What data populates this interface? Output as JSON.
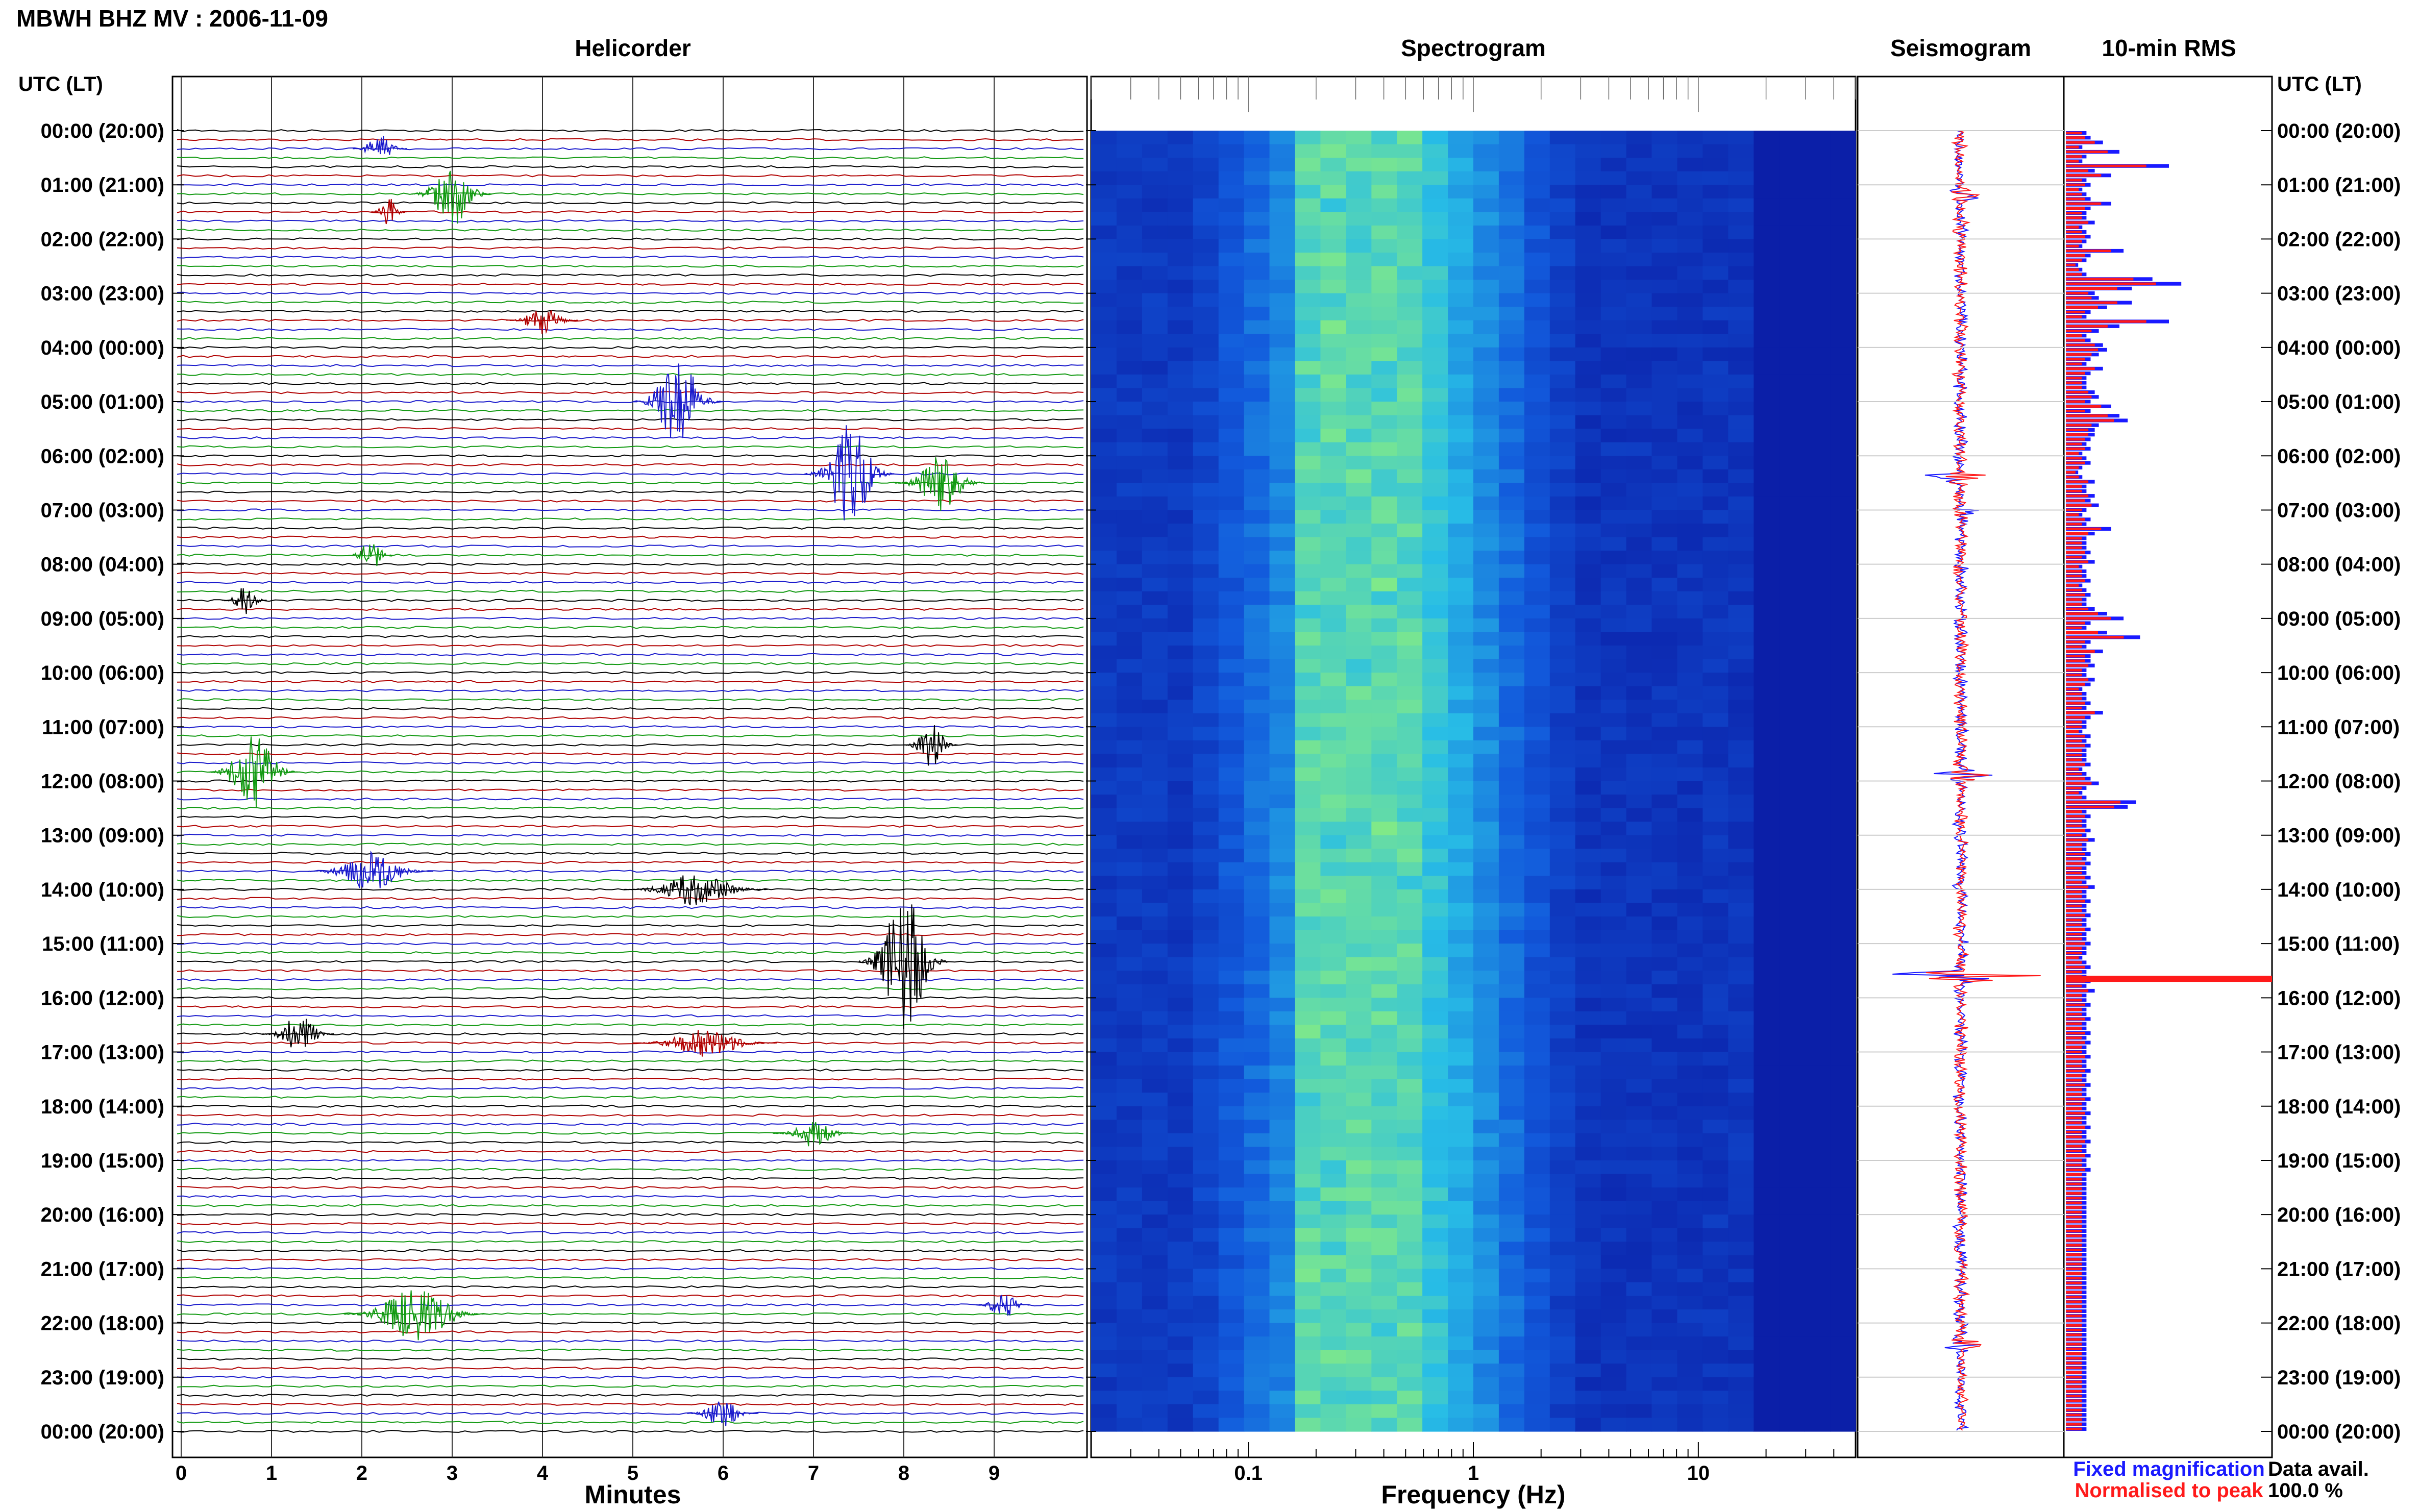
{
  "header": {
    "title": "MBWH BHZ MV : 2006-11-09",
    "utc_left": "UTC (LT)",
    "utc_right": "UTC (LT)"
  },
  "panels": {
    "helicorder": "Helicorder",
    "spectrogram": "Spectrogram",
    "seismogram": "Seismogram",
    "rms": "10-min RMS"
  },
  "axes": {
    "helicorder_xlabel": "Minutes",
    "spectrogram_xlabel": "Frequency (Hz)"
  },
  "legend": {
    "fixed": "Fixed magnification",
    "normalised": "Normalised to peak",
    "fixed_color": "#1a1aff",
    "normalised_color": "#ff1a1a"
  },
  "data_avail": {
    "label": "Data avail.",
    "value": "100.0 %"
  },
  "colors": {
    "trace_cycle": [
      "#000000",
      "#b00000",
      "#1a1acc",
      "#119911"
    ],
    "spectro_low": "#0b1fa8",
    "spectro_high": "#8ef07a"
  },
  "chart_data": [
    {
      "type": "line",
      "panel": "helicorder",
      "x_ticks": [
        "0",
        "1",
        "2",
        "3",
        "4",
        "5",
        "6",
        "7",
        "8",
        "9"
      ],
      "xlim": [
        0,
        10
      ],
      "xlabel": "Minutes",
      "y_ticks": [
        "00:00 (20:00)",
        "01:00 (21:00)",
        "02:00 (22:00)",
        "03:00 (23:00)",
        "04:00 (00:00)",
        "05:00 (01:00)",
        "06:00 (02:00)",
        "07:00 (03:00)",
        "08:00 (04:00)",
        "09:00 (05:00)",
        "10:00 (06:00)",
        "11:00 (07:00)",
        "12:00 (08:00)",
        "13:00 (09:00)",
        "14:00 (10:00)",
        "15:00 (11:00)",
        "16:00 (12:00)",
        "17:00 (13:00)",
        "18:00 (14:00)",
        "19:00 (15:00)",
        "20:00 (16:00)",
        "21:00 (17:00)",
        "22:00 (18:00)",
        "23:00 (19:00)",
        "00:00 (20:00)"
      ],
      "rows_per_hour": 6,
      "events": [
        {
          "hour": 0.3,
          "minute": 2.2,
          "amp": 0.5,
          "dur": 0.6
        },
        {
          "hour": 1.1,
          "minute": 3.0,
          "amp": 1.2,
          "dur": 0.9
        },
        {
          "hour": 1.5,
          "minute": 2.3,
          "amp": 0.6,
          "dur": 0.4
        },
        {
          "hour": 3.5,
          "minute": 4.0,
          "amp": 0.5,
          "dur": 0.8
        },
        {
          "hour": 5.0,
          "minute": 5.5,
          "amp": 1.6,
          "dur": 1.0
        },
        {
          "hour": 6.3,
          "minute": 7.4,
          "amp": 1.8,
          "dur": 1.0
        },
        {
          "hour": 6.5,
          "minute": 8.4,
          "amp": 1.0,
          "dur": 1.0
        },
        {
          "hour": 7.8,
          "minute": 2.1,
          "amp": 0.6,
          "dur": 0.5
        },
        {
          "hour": 8.6,
          "minute": 0.7,
          "amp": 0.6,
          "dur": 0.5
        },
        {
          "hour": 11.3,
          "minute": 8.3,
          "amp": 0.8,
          "dur": 0.6
        },
        {
          "hour": 11.8,
          "minute": 0.8,
          "amp": 1.3,
          "dur": 1.0
        },
        {
          "hour": 13.6,
          "minute": 2.1,
          "amp": 0.7,
          "dur": 1.4
        },
        {
          "hour": 14.0,
          "minute": 5.7,
          "amp": 0.6,
          "dur": 1.6
        },
        {
          "hour": 15.4,
          "minute": 8.0,
          "amp": 2.6,
          "dur": 1.0
        },
        {
          "hour": 16.6,
          "minute": 1.3,
          "amp": 0.7,
          "dur": 0.8
        },
        {
          "hour": 16.8,
          "minute": 5.8,
          "amp": 0.5,
          "dur": 1.6
        },
        {
          "hour": 18.5,
          "minute": 7.0,
          "amp": 0.5,
          "dur": 0.9
        },
        {
          "hour": 21.6,
          "minute": 9.1,
          "amp": 0.5,
          "dur": 0.6
        },
        {
          "hour": 21.9,
          "minute": 2.6,
          "amp": 1.0,
          "dur": 1.6
        },
        {
          "hour": 23.6,
          "minute": 6.0,
          "amp": 0.5,
          "dur": 0.8
        }
      ]
    },
    {
      "type": "heatmap",
      "panel": "spectrogram",
      "x_scale": "log",
      "xlim": [
        0.02,
        50
      ],
      "x_ticks": [
        "0.1",
        "1",
        "10"
      ],
      "xlabel": "Frequency (Hz)",
      "peak_band_hz": [
        0.15,
        0.6
      ],
      "cutoff_hz": 20
    },
    {
      "type": "line",
      "panel": "seismogram",
      "note_series": [
        "Fixed magnification",
        "Normalised to peak"
      ],
      "spikes": [
        {
          "hour": 1.2,
          "amp": 0.2
        },
        {
          "hour": 6.4,
          "amp": 0.5
        },
        {
          "hour": 7.0,
          "amp": 0.2
        },
        {
          "hour": 11.9,
          "amp": 0.4
        },
        {
          "hour": 15.6,
          "amp": 1.0
        },
        {
          "hour": 22.4,
          "amp": 0.3
        }
      ]
    },
    {
      "type": "bar",
      "panel": "rms",
      "orientation": "horizontal",
      "series": [
        {
          "name": "Fixed magnification",
          "values": [
            0.1,
            0.12,
            0.18,
            0.08,
            0.26,
            0.1,
            0.08,
            0.5,
            0.14,
            0.22,
            0.1,
            0.12,
            0.08,
            0.1,
            0.12,
            0.22,
            0.12,
            0.1,
            0.1,
            0.14,
            0.08,
            0.1,
            0.12,
            0.1,
            0.08,
            0.28,
            0.12,
            0.1,
            0.06,
            0.08,
            0.1,
            0.42,
            0.56,
            0.32,
            0.14,
            0.16,
            0.32,
            0.2,
            0.12,
            0.1,
            0.5,
            0.26,
            0.16,
            0.1,
            0.12,
            0.18,
            0.2,
            0.16,
            0.12,
            0.1,
            0.18,
            0.12,
            0.1,
            0.1,
            0.1,
            0.14,
            0.16,
            0.12,
            0.22,
            0.12,
            0.26,
            0.3,
            0.16,
            0.14,
            0.14,
            0.12,
            0.1,
            0.12,
            0.08,
            0.1,
            0.12,
            0.08,
            0.06,
            0.08,
            0.14,
            0.1,
            0.1,
            0.14,
            0.12,
            0.16,
            0.1,
            0.08,
            0.12,
            0.1,
            0.22,
            0.14,
            0.1,
            0.1,
            0.1,
            0.12,
            0.1,
            0.14,
            0.08,
            0.1,
            0.1,
            0.12,
            0.08,
            0.1,
            0.12,
            0.1,
            0.1,
            0.14,
            0.2,
            0.28,
            0.12,
            0.1,
            0.2,
            0.36,
            0.12,
            0.1,
            0.18,
            0.12,
            0.12,
            0.14,
            0.1,
            0.1,
            0.14,
            0.12,
            0.08,
            0.1,
            0.1,
            0.12,
            0.1,
            0.18,
            0.12,
            0.1,
            0.1,
            0.08,
            0.12,
            0.1,
            0.12,
            0.1,
            0.1,
            0.1,
            0.12,
            0.08,
            0.1,
            0.12,
            0.16,
            0.1,
            0.08,
            0.1,
            0.34,
            0.3,
            0.1,
            0.12,
            0.1,
            0.1,
            0.12,
            0.1,
            0.14,
            0.1,
            0.1,
            0.12,
            0.1,
            0.12,
            0.1,
            0.1,
            0.12,
            0.1,
            0.14,
            0.1,
            0.1,
            0.12,
            0.1,
            0.1,
            0.12,
            0.1,
            0.1,
            0.12,
            0.1,
            0.1,
            0.12,
            0.1,
            0.1,
            0.08,
            0.1,
            0.12,
            0.1,
            0.1,
            0.12,
            0.1,
            0.14,
            0.1,
            0.1,
            0.12,
            0.1,
            0.1,
            0.12,
            0.1,
            0.1,
            0.12,
            0.1,
            0.12,
            0.1,
            0.1,
            0.12,
            0.1,
            0.1,
            0.12,
            0.1,
            0.1,
            0.12,
            0.1,
            0.1,
            0.12,
            0.1,
            0.1,
            0.12,
            0.1,
            0.1,
            0.12,
            0.1,
            0.1,
            0.12,
            0.1,
            0.1,
            0.12,
            0.1,
            0.1,
            0.12,
            0.1,
            0.1,
            0.1,
            0.1,
            0.1,
            0.1,
            0.1,
            0.1,
            0.1,
            0.1,
            0.1,
            0.1,
            0.1,
            0.1,
            0.1,
            0.1,
            0.1,
            0.1,
            0.1,
            0.1,
            0.1,
            0.1,
            0.1,
            0.1,
            0.1,
            0.1,
            0.1,
            0.1,
            0.1,
            0.1,
            0.1,
            0.1,
            0.1,
            0.1,
            0.1,
            0.1,
            0.1,
            0.1,
            0.1,
            0.1,
            0.1,
            0.1,
            0.1,
            0.1,
            0.1,
            0.1,
            0.1,
            0.1,
            0.1,
            0.1,
            0.1,
            0.1,
            0.1,
            0.1,
            0.1
          ]
        },
        {
          "name": "Normalised to peak",
          "values_scale": 0.78
        }
      ]
    }
  ]
}
